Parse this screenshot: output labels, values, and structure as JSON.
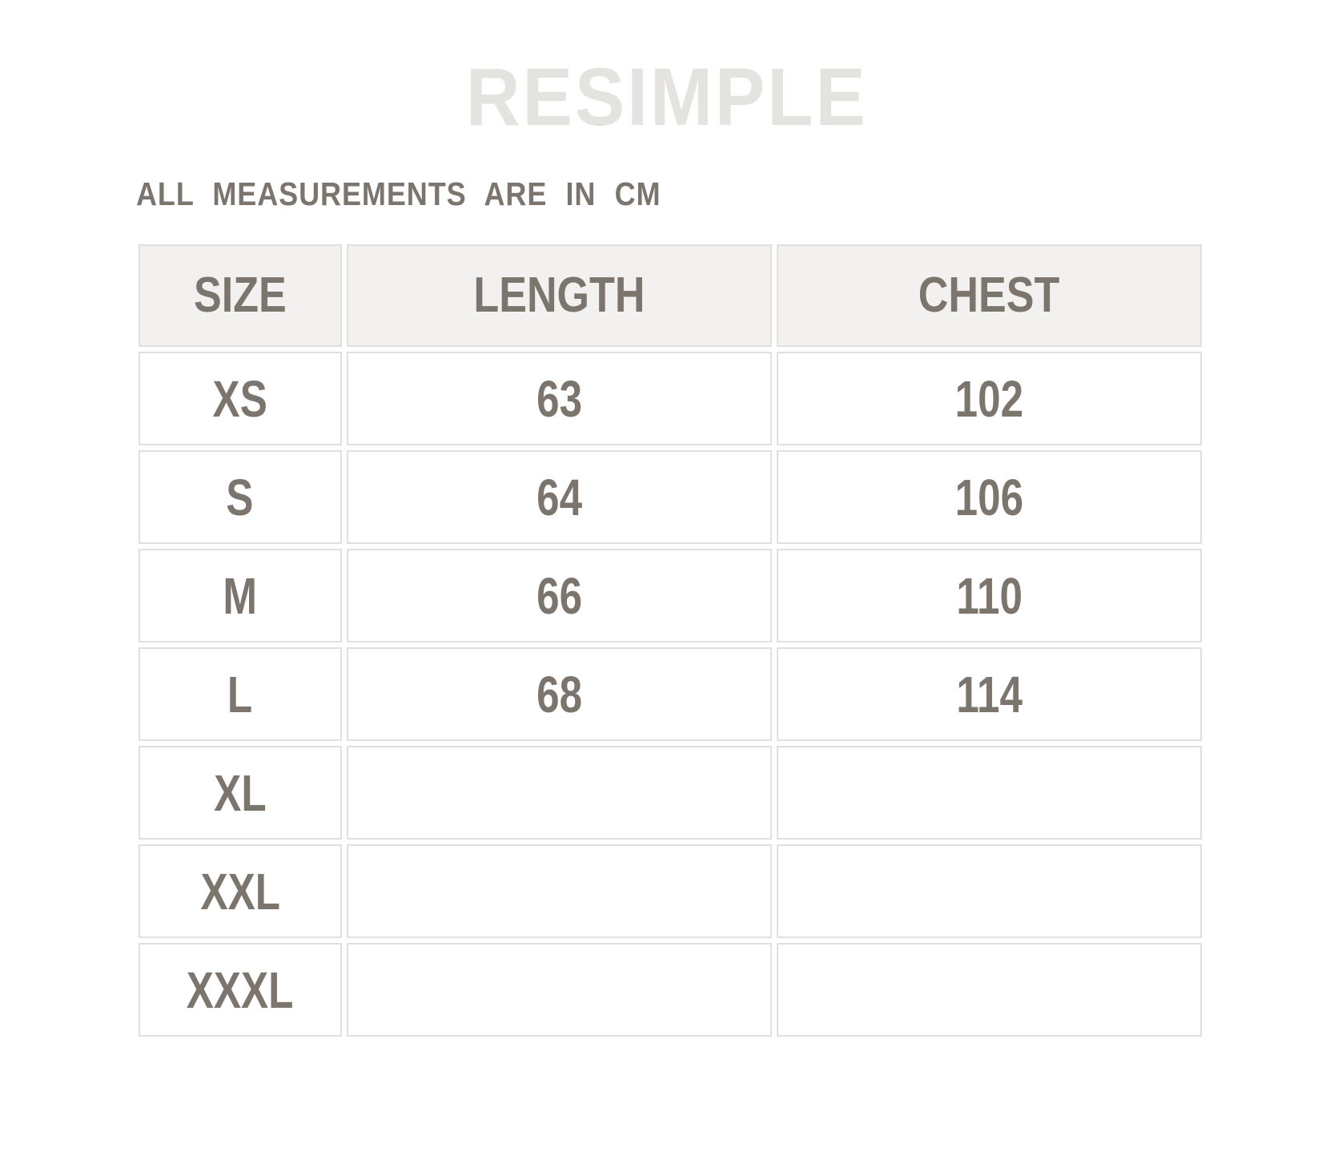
{
  "colors": {
    "page-bg": "#ffffff",
    "logo-color": "#e5e3e0",
    "text-color": "#7b756e",
    "border-color": "#e2e0de",
    "header-bg": "#f2f1f0",
    "cell-bg": "#ffffff"
  },
  "brand": {
    "logo_text": "RESIMPLE"
  },
  "note": {
    "text": "ALL MEASUREMENTS ARE IN CM"
  },
  "size_chart": {
    "columns": [
      "SIZE",
      "LENGTH",
      "CHEST"
    ],
    "rows": [
      {
        "size": "XS",
        "length": "63",
        "chest": "102"
      },
      {
        "size": "S",
        "length": "64",
        "chest": "106"
      },
      {
        "size": "M",
        "length": "66",
        "chest": "110"
      },
      {
        "size": "L",
        "length": "68",
        "chest": "114"
      },
      {
        "size": "XL",
        "length": "",
        "chest": ""
      },
      {
        "size": "XXL",
        "length": "",
        "chest": ""
      },
      {
        "size": "XXXL",
        "length": "",
        "chest": ""
      }
    ]
  }
}
